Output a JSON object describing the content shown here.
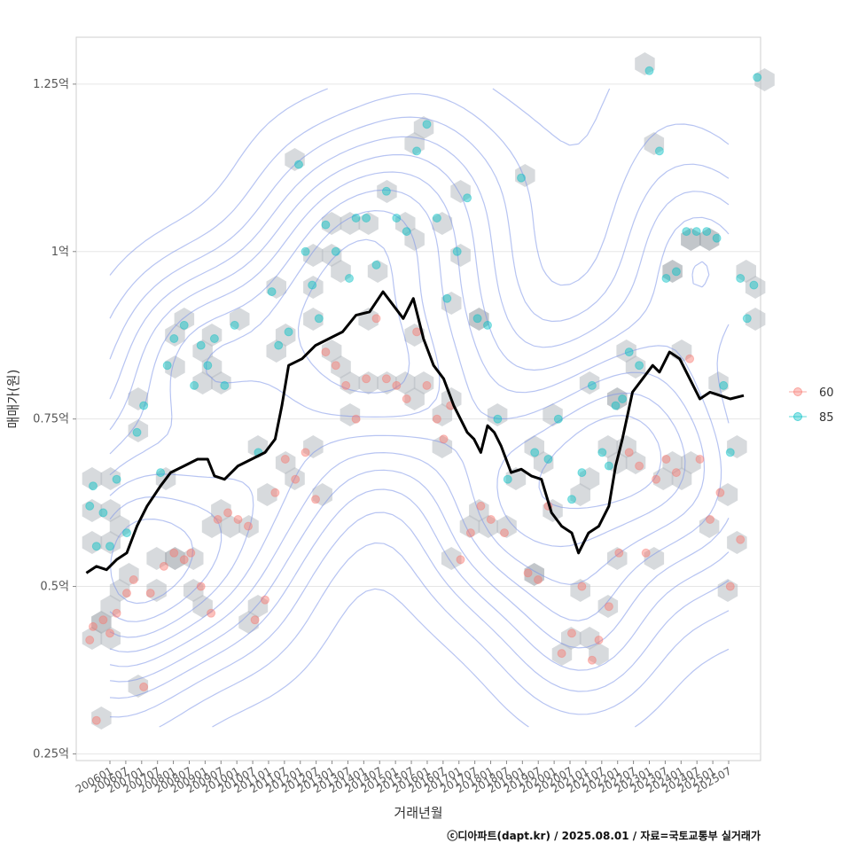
{
  "chart_data": {
    "type": "scatter",
    "xlabel": "거래년월",
    "ylabel": "매매가(원)",
    "y_ticks": [
      {
        "value": 0.25,
        "label": "0.25억"
      },
      {
        "value": 0.5,
        "label": "0.5억"
      },
      {
        "value": 0.75,
        "label": "0.75억"
      },
      {
        "value": 1.0,
        "label": "1억"
      },
      {
        "value": 1.25,
        "label": "1.25억"
      }
    ],
    "ylim": [
      0.24,
      1.32
    ],
    "x_ticks": [
      "200601",
      "200607",
      "200701",
      "200707",
      "200801",
      "200807",
      "200901",
      "200907",
      "201001",
      "201007",
      "201101",
      "201107",
      "201201",
      "201207",
      "201301",
      "201307",
      "201401",
      "201407",
      "201501",
      "201507",
      "201601",
      "201607",
      "201701",
      "201707",
      "201801",
      "201807",
      "201901",
      "201907",
      "202001",
      "202007",
      "202101",
      "202107",
      "202201",
      "202207",
      "202301",
      "202307",
      "202401",
      "202407",
      "202501",
      "202507"
    ],
    "xlim": [
      2005.7,
      2026.0
    ],
    "grid": true,
    "legend_position": "right",
    "legend": [
      {
        "name": "60",
        "color": "#F8766D"
      },
      {
        "name": "85",
        "color": "#00BFC4"
      }
    ],
    "trend_line": {
      "color": "#000000",
      "points": [
        [
          2006.0,
          0.52
        ],
        [
          2006.3,
          0.53
        ],
        [
          2006.6,
          0.525
        ],
        [
          2006.9,
          0.54
        ],
        [
          2007.2,
          0.55
        ],
        [
          2007.5,
          0.59
        ],
        [
          2007.8,
          0.62
        ],
        [
          2008.2,
          0.65
        ],
        [
          2008.5,
          0.67
        ],
        [
          2008.9,
          0.68
        ],
        [
          2009.3,
          0.69
        ],
        [
          2009.6,
          0.69
        ],
        [
          2009.8,
          0.665
        ],
        [
          2010.1,
          0.66
        ],
        [
          2010.5,
          0.68
        ],
        [
          2010.9,
          0.69
        ],
        [
          2011.3,
          0.7
        ],
        [
          2011.6,
          0.72
        ],
        [
          2011.8,
          0.77
        ],
        [
          2012.0,
          0.83
        ],
        [
          2012.4,
          0.84
        ],
        [
          2012.8,
          0.86
        ],
        [
          2013.2,
          0.87
        ],
        [
          2013.6,
          0.88
        ],
        [
          2014.0,
          0.905
        ],
        [
          2014.4,
          0.91
        ],
        [
          2014.8,
          0.94
        ],
        [
          2015.1,
          0.92
        ],
        [
          2015.4,
          0.9
        ],
        [
          2015.7,
          0.93
        ],
        [
          2016.0,
          0.87
        ],
        [
          2016.3,
          0.83
        ],
        [
          2016.6,
          0.81
        ],
        [
          2016.9,
          0.77
        ],
        [
          2017.3,
          0.73
        ],
        [
          2017.5,
          0.72
        ],
        [
          2017.7,
          0.7
        ],
        [
          2017.9,
          0.74
        ],
        [
          2018.1,
          0.73
        ],
        [
          2018.3,
          0.71
        ],
        [
          2018.6,
          0.67
        ],
        [
          2018.9,
          0.675
        ],
        [
          2019.2,
          0.665
        ],
        [
          2019.5,
          0.66
        ],
        [
          2019.8,
          0.61
        ],
        [
          2020.1,
          0.59
        ],
        [
          2020.4,
          0.58
        ],
        [
          2020.6,
          0.55
        ],
        [
          2020.9,
          0.58
        ],
        [
          2021.2,
          0.59
        ],
        [
          2021.5,
          0.62
        ],
        [
          2021.7,
          0.68
        ],
        [
          2021.9,
          0.72
        ],
        [
          2022.2,
          0.79
        ],
        [
          2022.5,
          0.81
        ],
        [
          2022.8,
          0.83
        ],
        [
          2023.0,
          0.82
        ],
        [
          2023.3,
          0.85
        ],
        [
          2023.6,
          0.84
        ],
        [
          2023.9,
          0.81
        ],
        [
          2024.2,
          0.78
        ],
        [
          2024.5,
          0.79
        ],
        [
          2024.8,
          0.785
        ],
        [
          2025.1,
          0.78
        ],
        [
          2025.5,
          0.785
        ]
      ]
    },
    "series": [
      {
        "name": "60",
        "color": "#F8766D",
        "points": [
          [
            2006.1,
            0.42
          ],
          [
            2006.2,
            0.44
          ],
          [
            2006.3,
            0.3
          ],
          [
            2006.5,
            0.45
          ],
          [
            2006.7,
            0.43
          ],
          [
            2006.9,
            0.46
          ],
          [
            2007.2,
            0.49
          ],
          [
            2007.4,
            0.51
          ],
          [
            2007.7,
            0.35
          ],
          [
            2007.9,
            0.49
          ],
          [
            2008.3,
            0.53
          ],
          [
            2008.6,
            0.55
          ],
          [
            2008.9,
            0.54
          ],
          [
            2009.1,
            0.55
          ],
          [
            2009.4,
            0.5
          ],
          [
            2009.7,
            0.46
          ],
          [
            2009.9,
            0.6
          ],
          [
            2010.2,
            0.61
          ],
          [
            2010.5,
            0.6
          ],
          [
            2010.8,
            0.59
          ],
          [
            2011.0,
            0.45
          ],
          [
            2011.3,
            0.48
          ],
          [
            2011.6,
            0.64
          ],
          [
            2011.9,
            0.69
          ],
          [
            2012.2,
            0.66
          ],
          [
            2012.5,
            0.7
          ],
          [
            2012.8,
            0.63
          ],
          [
            2013.1,
            0.85
          ],
          [
            2013.4,
            0.83
          ],
          [
            2013.7,
            0.8
          ],
          [
            2014.0,
            0.75
          ],
          [
            2014.3,
            0.81
          ],
          [
            2014.6,
            0.9
          ],
          [
            2014.9,
            0.81
          ],
          [
            2015.2,
            0.8
          ],
          [
            2015.5,
            0.78
          ],
          [
            2015.8,
            0.88
          ],
          [
            2016.1,
            0.8
          ],
          [
            2016.4,
            0.75
          ],
          [
            2016.6,
            0.72
          ],
          [
            2016.8,
            0.77
          ],
          [
            2017.1,
            0.54
          ],
          [
            2017.4,
            0.58
          ],
          [
            2017.7,
            0.62
          ],
          [
            2018.0,
            0.6
          ],
          [
            2018.4,
            0.58
          ],
          [
            2019.1,
            0.52
          ],
          [
            2019.4,
            0.51
          ],
          [
            2019.7,
            0.62
          ],
          [
            2020.1,
            0.4
          ],
          [
            2020.4,
            0.43
          ],
          [
            2020.7,
            0.5
          ],
          [
            2021.0,
            0.39
          ],
          [
            2021.2,
            0.42
          ],
          [
            2021.5,
            0.47
          ],
          [
            2021.8,
            0.55
          ],
          [
            2022.1,
            0.7
          ],
          [
            2022.4,
            0.68
          ],
          [
            2022.6,
            0.55
          ],
          [
            2022.9,
            0.66
          ],
          [
            2023.2,
            0.69
          ],
          [
            2023.5,
            0.67
          ],
          [
            2023.9,
            0.84
          ],
          [
            2024.2,
            0.69
          ],
          [
            2024.5,
            0.6
          ],
          [
            2024.8,
            0.64
          ],
          [
            2025.1,
            0.5
          ],
          [
            2025.4,
            0.57
          ]
        ]
      },
      {
        "name": "85",
        "color": "#00BFC4",
        "points": [
          [
            2006.1,
            0.62
          ],
          [
            2006.2,
            0.65
          ],
          [
            2006.3,
            0.56
          ],
          [
            2006.5,
            0.61
          ],
          [
            2006.7,
            0.56
          ],
          [
            2006.9,
            0.66
          ],
          [
            2007.2,
            0.58
          ],
          [
            2007.5,
            0.73
          ],
          [
            2007.7,
            0.77
          ],
          [
            2008.2,
            0.67
          ],
          [
            2008.4,
            0.83
          ],
          [
            2008.6,
            0.87
          ],
          [
            2008.9,
            0.89
          ],
          [
            2009.2,
            0.8
          ],
          [
            2009.4,
            0.86
          ],
          [
            2009.6,
            0.83
          ],
          [
            2009.8,
            0.87
          ],
          [
            2010.1,
            0.8
          ],
          [
            2010.4,
            0.89
          ],
          [
            2011.1,
            0.7
          ],
          [
            2011.5,
            0.94
          ],
          [
            2011.7,
            0.86
          ],
          [
            2012.0,
            0.88
          ],
          [
            2012.3,
            1.13
          ],
          [
            2012.5,
            1.0
          ],
          [
            2012.7,
            0.95
          ],
          [
            2012.9,
            0.9
          ],
          [
            2013.1,
            1.04
          ],
          [
            2013.4,
            1.0
          ],
          [
            2013.8,
            0.96
          ],
          [
            2014.0,
            1.05
          ],
          [
            2014.3,
            1.05
          ],
          [
            2014.6,
            0.98
          ],
          [
            2014.9,
            1.09
          ],
          [
            2015.2,
            1.05
          ],
          [
            2015.5,
            1.03
          ],
          [
            2015.8,
            1.15
          ],
          [
            2016.1,
            1.19
          ],
          [
            2016.4,
            1.05
          ],
          [
            2016.7,
            0.93
          ],
          [
            2017.0,
            1.0
          ],
          [
            2017.3,
            1.08
          ],
          [
            2017.6,
            0.9
          ],
          [
            2017.9,
            0.89
          ],
          [
            2018.2,
            0.75
          ],
          [
            2018.5,
            0.66
          ],
          [
            2018.9,
            1.11
          ],
          [
            2019.3,
            0.7
          ],
          [
            2019.7,
            0.69
          ],
          [
            2020.0,
            0.75
          ],
          [
            2020.4,
            0.63
          ],
          [
            2020.7,
            0.67
          ],
          [
            2021.0,
            0.8
          ],
          [
            2021.3,
            0.7
          ],
          [
            2021.5,
            0.68
          ],
          [
            2021.7,
            0.77
          ],
          [
            2021.9,
            0.78
          ],
          [
            2022.1,
            0.85
          ],
          [
            2022.4,
            0.83
          ],
          [
            2022.7,
            1.27
          ],
          [
            2023.0,
            1.15
          ],
          [
            2023.2,
            0.96
          ],
          [
            2023.5,
            0.97
          ],
          [
            2023.8,
            1.03
          ],
          [
            2024.1,
            1.03
          ],
          [
            2024.4,
            1.03
          ],
          [
            2024.7,
            1.02
          ],
          [
            2024.9,
            0.8
          ],
          [
            2025.1,
            0.7
          ],
          [
            2025.4,
            0.96
          ],
          [
            2025.6,
            0.9
          ],
          [
            2025.8,
            0.95
          ],
          [
            2025.9,
            1.26
          ]
        ]
      }
    ]
  },
  "legend": {
    "item1": "60",
    "item2": "85"
  },
  "caption": "ⓒ디아파트(dapt.kr) / 2025.08.01 / 자료=국토교통부 실거래가"
}
